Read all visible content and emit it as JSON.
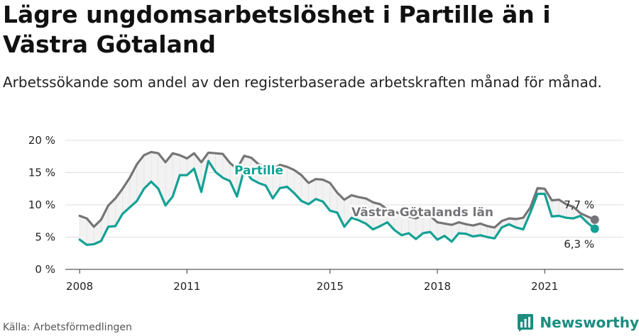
{
  "header": {
    "title": "Lägre ungdomsarbetslöshet i Partille än i Västra Götaland",
    "subtitle": "Arbetssökande som andel av den registerbaserade arbetskraften månad för månad."
  },
  "footer": {
    "source": "Källa: Arbetsförmedlingen",
    "brand": "Newsworthy"
  },
  "chart_data": {
    "type": "line",
    "title": "",
    "xlabel": "",
    "ylabel": "",
    "ylim": [
      0,
      20
    ],
    "xlim": [
      2007.6,
      2023.2
    ],
    "y_ticks": [
      0,
      5,
      10,
      15,
      20
    ],
    "y_tick_labels": [
      "0 %",
      "5 %",
      "10 %",
      "15 %",
      "20 %"
    ],
    "x_ticks": [
      2008,
      2011,
      2015,
      2018,
      2021
    ],
    "x_tick_labels": [
      "2008",
      "2011",
      "2015",
      "2018",
      "2021"
    ],
    "grid": true,
    "series": [
      {
        "name": "Partille",
        "color": "#13a195",
        "end_label": "6,3 %",
        "x": [
          2008.0,
          2008.2,
          2008.4,
          2008.6,
          2008.8,
          2009.0,
          2009.2,
          2009.4,
          2009.6,
          2009.8,
          2010.0,
          2010.2,
          2010.4,
          2010.6,
          2010.8,
          2011.0,
          2011.2,
          2011.4,
          2011.6,
          2011.8,
          2012.0,
          2012.2,
          2012.4,
          2012.6,
          2012.8,
          2013.0,
          2013.2,
          2013.4,
          2013.6,
          2013.8,
          2014.0,
          2014.2,
          2014.4,
          2014.6,
          2014.8,
          2015.0,
          2015.2,
          2015.4,
          2015.6,
          2015.8,
          2016.0,
          2016.2,
          2016.4,
          2016.6,
          2016.8,
          2017.0,
          2017.2,
          2017.4,
          2017.6,
          2017.8,
          2018.0,
          2018.2,
          2018.4,
          2018.6,
          2018.8,
          2019.0,
          2019.2,
          2019.4,
          2019.6,
          2019.8,
          2020.0,
          2020.2,
          2020.4,
          2020.6,
          2020.8,
          2021.0,
          2021.2,
          2021.4,
          2021.6,
          2021.8,
          2022.0,
          2022.2,
          2022.4
        ],
        "values": [
          4.6,
          3.8,
          3.9,
          4.4,
          6.6,
          6.7,
          8.6,
          9.6,
          10.6,
          12.5,
          13.6,
          12.5,
          9.9,
          11.3,
          14.6,
          14.6,
          15.6,
          12.0,
          16.8,
          15.1,
          14.2,
          13.7,
          11.3,
          15.5,
          14.0,
          13.4,
          13.0,
          11.0,
          12.6,
          12.8,
          11.8,
          10.6,
          10.1,
          10.9,
          10.5,
          9.1,
          8.8,
          6.6,
          8.0,
          7.6,
          7.1,
          6.2,
          6.7,
          7.3,
          6.1,
          5.3,
          5.6,
          4.7,
          5.6,
          5.8,
          4.6,
          5.2,
          4.3,
          5.6,
          5.5,
          5.1,
          5.3,
          5.0,
          4.8,
          6.5,
          7.0,
          6.5,
          6.2,
          8.8,
          11.7,
          11.7,
          8.2,
          8.3,
          8.0,
          7.9,
          8.3,
          7.2,
          6.3
        ]
      },
      {
        "name": "Västra Götalands län",
        "color": "#757578",
        "end_label": "7,7 %",
        "x": [
          2008.0,
          2008.2,
          2008.4,
          2008.6,
          2008.8,
          2009.0,
          2009.2,
          2009.4,
          2009.6,
          2009.8,
          2010.0,
          2010.2,
          2010.4,
          2010.6,
          2010.8,
          2011.0,
          2011.2,
          2011.4,
          2011.6,
          2011.8,
          2012.0,
          2012.2,
          2012.4,
          2012.6,
          2012.8,
          2013.0,
          2013.2,
          2013.4,
          2013.6,
          2013.8,
          2014.0,
          2014.2,
          2014.4,
          2014.6,
          2014.8,
          2015.0,
          2015.2,
          2015.4,
          2015.6,
          2015.8,
          2016.0,
          2016.2,
          2016.4,
          2016.6,
          2016.8,
          2017.0,
          2017.2,
          2017.4,
          2017.6,
          2017.8,
          2018.0,
          2018.2,
          2018.4,
          2018.6,
          2018.8,
          2019.0,
          2019.2,
          2019.4,
          2019.6,
          2019.8,
          2020.0,
          2020.2,
          2020.4,
          2020.6,
          2020.8,
          2021.0,
          2021.2,
          2021.4,
          2021.6,
          2021.8,
          2022.0,
          2022.2,
          2022.4
        ],
        "values": [
          8.3,
          7.9,
          6.6,
          7.7,
          9.9,
          11.0,
          12.5,
          14.2,
          16.3,
          17.7,
          18.2,
          18.0,
          16.6,
          18.0,
          17.7,
          17.2,
          18.0,
          16.6,
          18.1,
          18.0,
          17.9,
          16.5,
          15.6,
          17.6,
          17.3,
          16.3,
          15.9,
          15.5,
          16.2,
          15.9,
          15.4,
          14.6,
          13.4,
          14.0,
          13.9,
          13.4,
          11.9,
          10.8,
          11.5,
          11.2,
          11.0,
          10.4,
          10.1,
          9.3,
          9.0,
          8.5,
          8.2,
          7.9,
          8.4,
          8.3,
          7.3,
          7.1,
          6.9,
          7.3,
          7.0,
          6.8,
          7.1,
          6.7,
          6.5,
          7.5,
          7.9,
          7.8,
          8.0,
          9.6,
          12.6,
          12.5,
          10.7,
          10.8,
          10.1,
          9.7,
          8.7,
          8.2,
          7.7
        ]
      }
    ],
    "annotations": [
      {
        "text": "Partille",
        "color": "#13a195"
      },
      {
        "text": "Västra Götalands län",
        "color": "#757578"
      }
    ]
  }
}
